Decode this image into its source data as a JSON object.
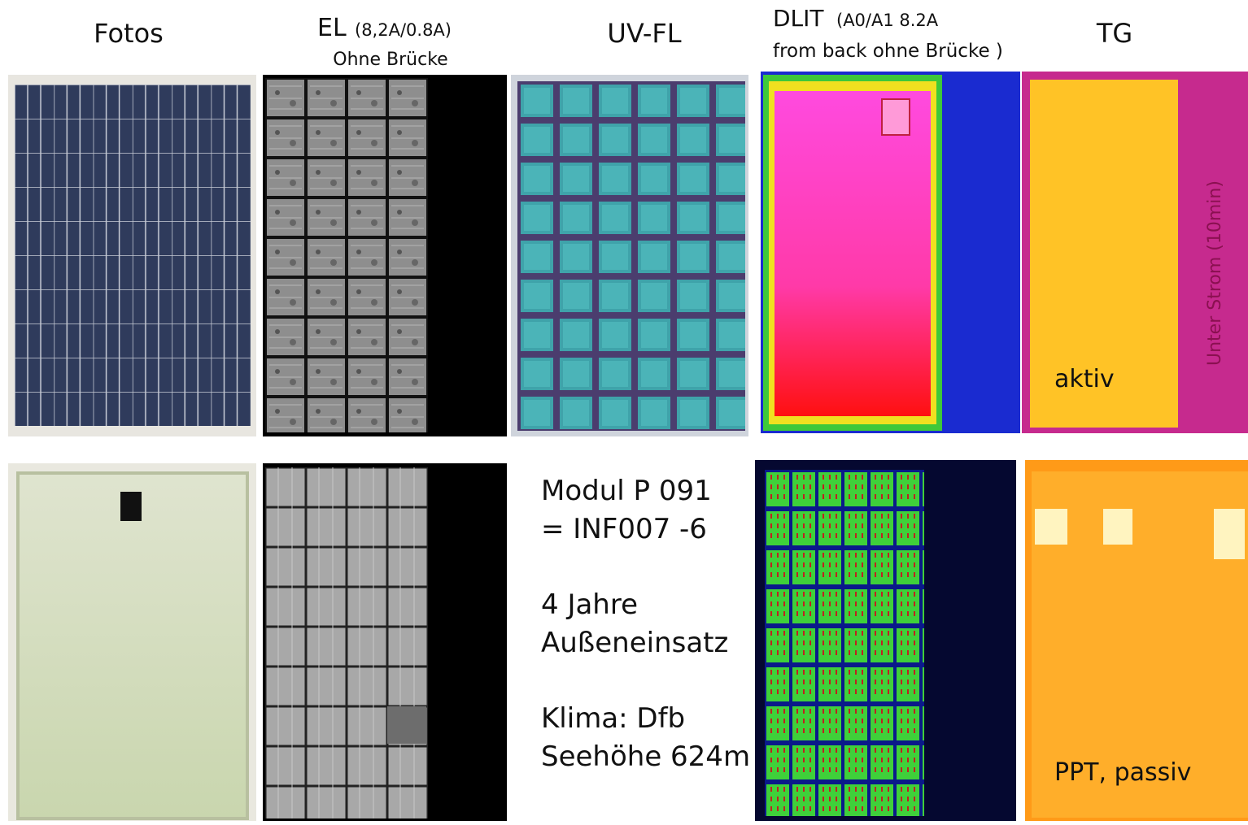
{
  "headers": {
    "fotos": "Fotos",
    "el": "EL",
    "el_current": "(8,2A/0.8A)",
    "el_note": "Ohne Brücke",
    "uvfl": "UV-FL",
    "dlit": "DLIT",
    "dlit_current": "(A0/A1  8.2A",
    "dlit_note": "from back ohne Brücke )",
    "tg": "TG"
  },
  "tg_labels": {
    "side": "Unter Strom (10min)",
    "top": "aktiv",
    "bottom": "PPT, passiv"
  },
  "info": [
    "Modul P 091",
    "= INF007 -6",
    "4 Jahre",
    "Außeneinsatz",
    "Klima: Dfb",
    "Seehöhe 624m"
  ]
}
